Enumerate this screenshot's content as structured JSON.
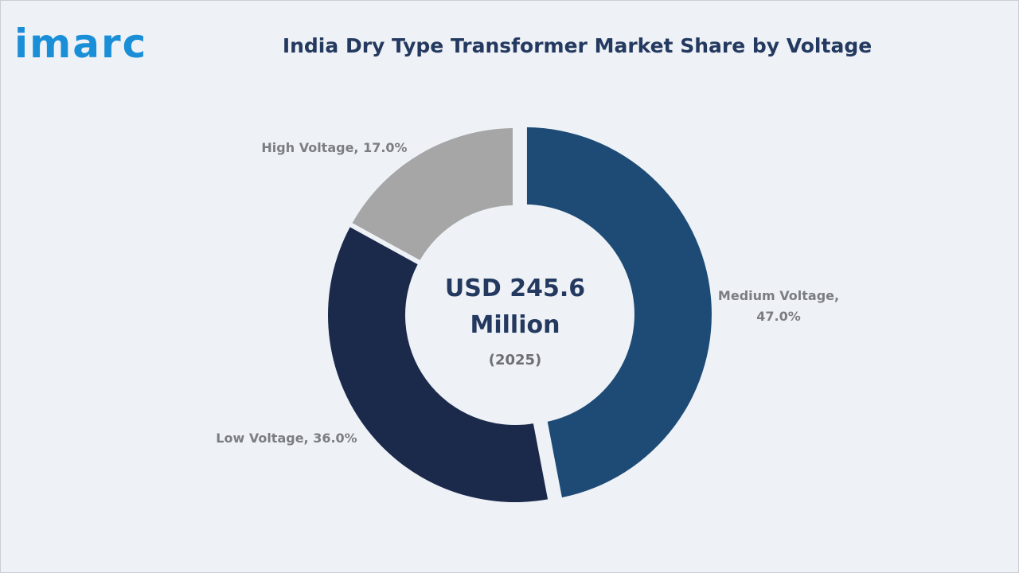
{
  "brand": {
    "logo_text": "imarc",
    "logo_color": "#1a8fd8"
  },
  "chart_data": {
    "type": "pie",
    "title": "India Dry Type Transformer Market Share by Voltage",
    "center_text": {
      "line1": "USD 245.6",
      "line2": "Million",
      "year": "(2025)"
    },
    "slices": [
      {
        "label": "Medium Voltage",
        "value": 47.0,
        "display": "47.0%",
        "color": "#1e4b75",
        "exploded": true
      },
      {
        "label": "Low Voltage",
        "value": 36.0,
        "display": "36.0%",
        "color": "#1b2a4b",
        "exploded": false
      },
      {
        "label": "High Voltage",
        "value": 17.0,
        "display": "17.0%",
        "color": "#a6a6a6",
        "exploded": false
      }
    ],
    "labels": {
      "medium": {
        "line1": "Medium Voltage,",
        "line2": "47.0%"
      },
      "low": "Low Voltage, 36.0%",
      "high": "High Voltage, 17.0%"
    }
  }
}
